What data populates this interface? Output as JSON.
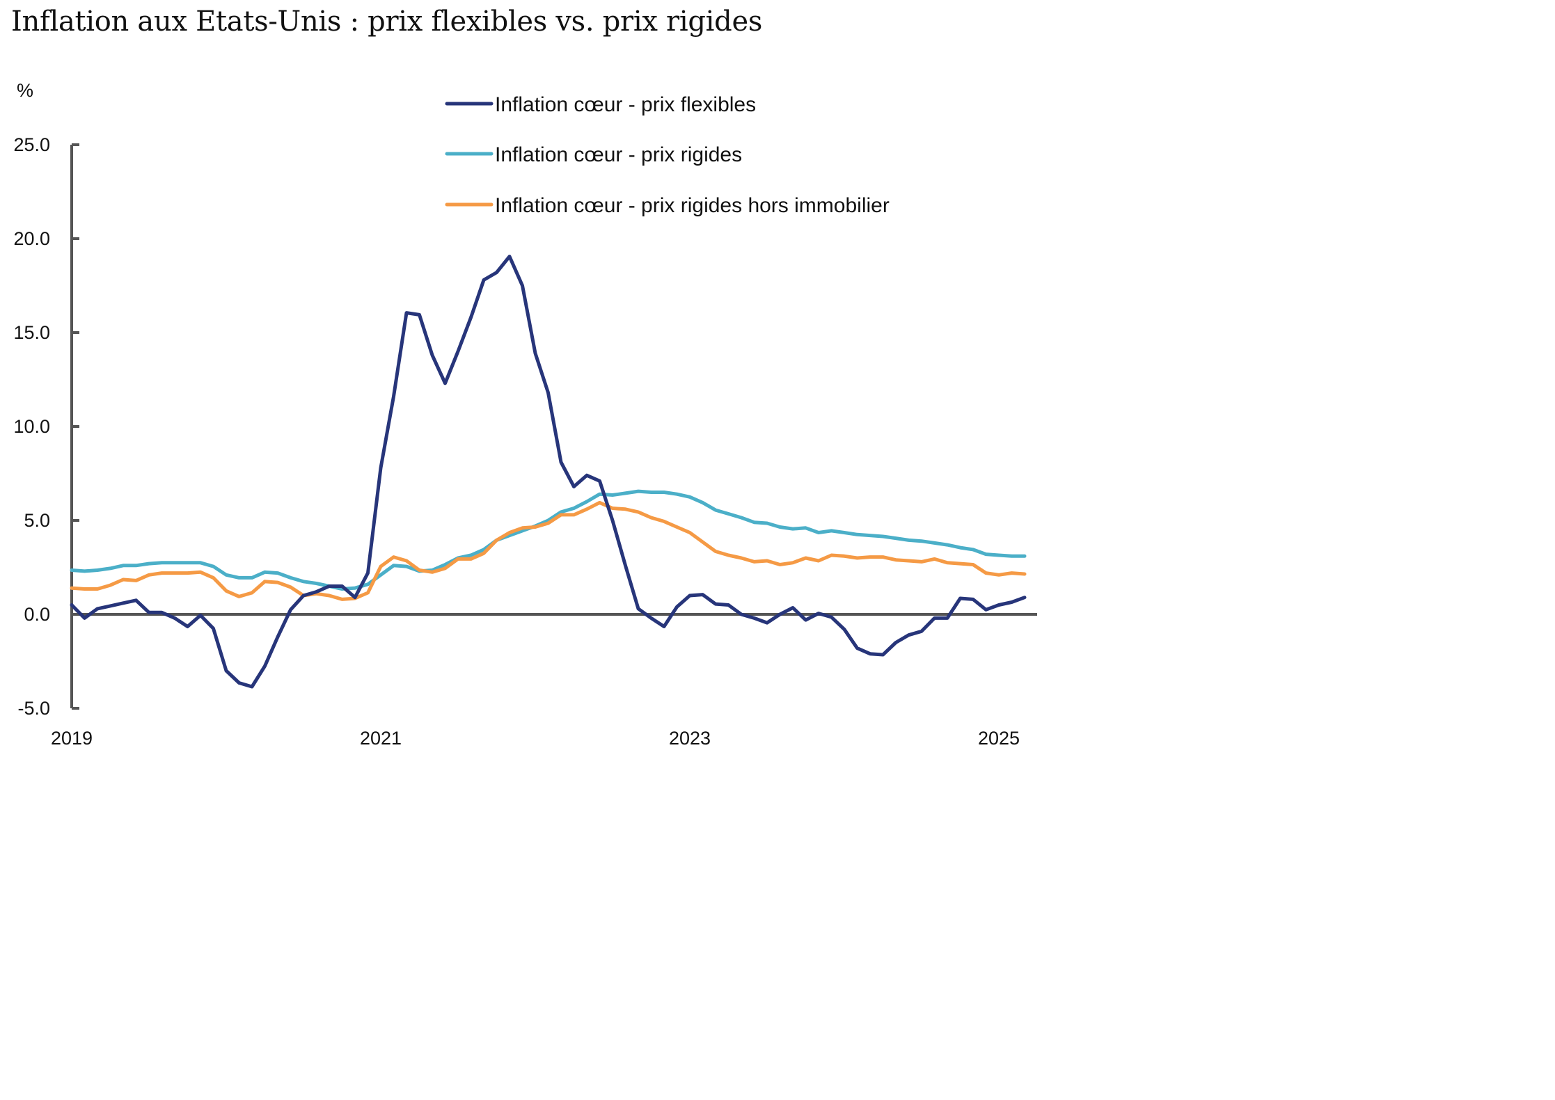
{
  "chart_data": {
    "type": "line",
    "title": "Inflation aux Etats-Unis : prix flexibles vs. prix rigides",
    "ylabel": "%",
    "xlabel": "",
    "ylim": [
      -5,
      25
    ],
    "yticks": [
      25.0,
      20.0,
      15.0,
      10.0,
      5.0,
      0.0,
      -5.0
    ],
    "ytick_labels": [
      "25.0",
      "20.0",
      "15.0",
      "10.0",
      "5.0",
      "0.0",
      "-5.0"
    ],
    "xticks": [
      2019,
      2021,
      2023,
      2025
    ],
    "xtick_labels": [
      "2019",
      "2021",
      "2023",
      "2025"
    ],
    "x_start": "2019-01",
    "x_end": "2025-03",
    "legend_position": "top-right",
    "grid": false,
    "series": [
      {
        "name": "Inflation cœur - prix flexibles",
        "color": "#27357a",
        "values": [
          0.5,
          -0.2,
          0.3,
          0.45,
          0.6,
          0.75,
          0.1,
          0.1,
          -0.2,
          -0.65,
          -0.05,
          -0.75,
          -3.0,
          -3.65,
          -3.85,
          -2.75,
          -1.2,
          0.25,
          1.0,
          1.2,
          1.5,
          1.5,
          0.9,
          2.2,
          7.8,
          11.6,
          16.05,
          15.95,
          13.8,
          12.3,
          14.0,
          15.8,
          17.8,
          18.2,
          19.05,
          17.5,
          13.9,
          11.8,
          8.1,
          6.8,
          7.4,
          7.1,
          5.0,
          2.6,
          0.3,
          -0.2,
          -0.65,
          0.4,
          1.0,
          1.05,
          0.55,
          0.5,
          0.0,
          -0.2,
          -0.45,
          0.0,
          0.35,
          -0.3,
          0.05,
          -0.15,
          -0.8,
          -1.8,
          -2.1,
          -2.15,
          -1.5,
          -1.1,
          -0.9,
          -0.2,
          -0.2,
          0.85,
          0.8,
          0.25,
          0.5,
          0.65,
          0.9
        ]
      },
      {
        "name": "Inflation cœur - prix rigides",
        "color": "#4bafc8",
        "values": [
          2.35,
          2.3,
          2.35,
          2.45,
          2.6,
          2.6,
          2.7,
          2.75,
          2.75,
          2.75,
          2.75,
          2.55,
          2.1,
          1.95,
          1.95,
          2.25,
          2.2,
          1.95,
          1.75,
          1.65,
          1.5,
          1.35,
          1.4,
          1.6,
          2.1,
          2.6,
          2.55,
          2.3,
          2.35,
          2.65,
          3.0,
          3.15,
          3.45,
          3.95,
          4.2,
          4.45,
          4.7,
          5.0,
          5.45,
          5.65,
          6.0,
          6.4,
          6.35,
          6.45,
          6.55,
          6.5,
          6.5,
          6.4,
          6.25,
          5.95,
          5.55,
          5.35,
          5.15,
          4.9,
          4.85,
          4.65,
          4.55,
          4.6,
          4.35,
          4.45,
          4.35,
          4.25,
          4.2,
          4.15,
          4.05,
          3.95,
          3.9,
          3.8,
          3.7,
          3.55,
          3.45,
          3.2,
          3.15,
          3.1,
          3.1
        ]
      },
      {
        "name": "Inflation cœur - prix rigides hors immobilier",
        "color": "#f59a45",
        "values": [
          1.4,
          1.35,
          1.35,
          1.55,
          1.85,
          1.8,
          2.1,
          2.2,
          2.2,
          2.2,
          2.25,
          1.95,
          1.25,
          0.95,
          1.15,
          1.75,
          1.7,
          1.45,
          1.0,
          1.1,
          1.0,
          0.8,
          0.85,
          1.15,
          2.55,
          3.05,
          2.85,
          2.35,
          2.25,
          2.45,
          2.95,
          2.95,
          3.25,
          3.95,
          4.35,
          4.6,
          4.65,
          4.85,
          5.3,
          5.3,
          5.6,
          5.95,
          5.65,
          5.6,
          5.45,
          5.15,
          4.95,
          4.65,
          4.35,
          3.85,
          3.35,
          3.15,
          3.0,
          2.8,
          2.85,
          2.65,
          2.75,
          3.0,
          2.85,
          3.15,
          3.1,
          3.0,
          3.05,
          3.05,
          2.9,
          2.85,
          2.8,
          2.95,
          2.75,
          2.7,
          2.65,
          2.2,
          2.1,
          2.2,
          2.15
        ]
      }
    ]
  }
}
